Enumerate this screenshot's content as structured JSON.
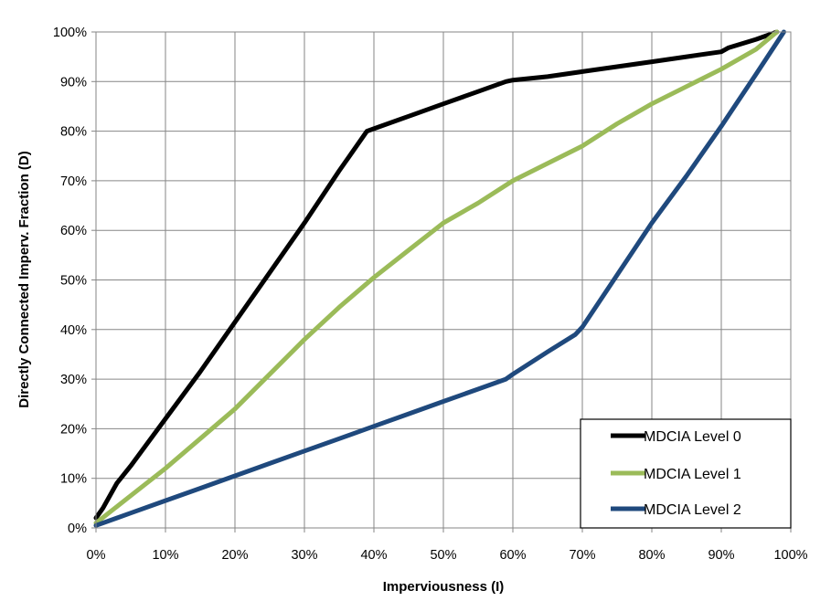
{
  "chart_data": {
    "type": "line",
    "title": "",
    "xlabel": "Imperviousness (I)",
    "ylabel": "Directly Connected Imperv. Fraction (D)",
    "xlim": [
      0,
      100
    ],
    "ylim": [
      0,
      100
    ],
    "x_ticks": [
      "0%",
      "10%",
      "20%",
      "30%",
      "40%",
      "50%",
      "60%",
      "70%",
      "80%",
      "90%",
      "100%"
    ],
    "y_ticks": [
      "0%",
      "10%",
      "20%",
      "30%",
      "40%",
      "50%",
      "60%",
      "70%",
      "80%",
      "90%",
      "100%"
    ],
    "grid": true,
    "legend_position": "bottom-right",
    "series": [
      {
        "name": "MDCIA Level 0",
        "color": "#000000",
        "x": [
          0,
          1,
          3,
          5,
          10,
          15,
          20,
          25,
          30,
          35,
          39,
          40,
          45,
          50,
          55,
          59,
          60,
          65,
          70,
          75,
          80,
          85,
          90,
          91,
          95,
          98
        ],
        "y": [
          2,
          4,
          9,
          12.5,
          22,
          31.5,
          41.5,
          51.5,
          61.5,
          72,
          80,
          80.5,
          83,
          85.5,
          88,
          90,
          90.3,
          91,
          92,
          93,
          94,
          95,
          96,
          96.8,
          98.5,
          100
        ]
      },
      {
        "name": "MDCIA Level 1",
        "color": "#9BBB59",
        "x": [
          0,
          5,
          10,
          15,
          20,
          25,
          30,
          35,
          40,
          45,
          50,
          55,
          60,
          65,
          70,
          75,
          80,
          85,
          90,
          95,
          98
        ],
        "y": [
          1,
          6.5,
          12,
          18,
          24,
          31,
          38,
          44.5,
          50.5,
          56,
          61.5,
          65.5,
          70,
          73.5,
          77,
          81.5,
          85.5,
          89,
          92.5,
          96.5,
          100
        ]
      },
      {
        "name": "MDCIA Level 2",
        "color": "#1F497D",
        "x": [
          0,
          5,
          10,
          15,
          20,
          25,
          30,
          35,
          40,
          45,
          50,
          55,
          59,
          60,
          65,
          69,
          70,
          75,
          80,
          85,
          90,
          95,
          99
        ],
        "y": [
          0.5,
          3,
          5.5,
          8,
          10.5,
          13,
          15.5,
          18,
          20.5,
          23,
          25.5,
          28,
          30,
          31,
          35.5,
          39,
          40.5,
          51,
          61.5,
          71,
          81,
          91.5,
          100
        ]
      }
    ]
  }
}
